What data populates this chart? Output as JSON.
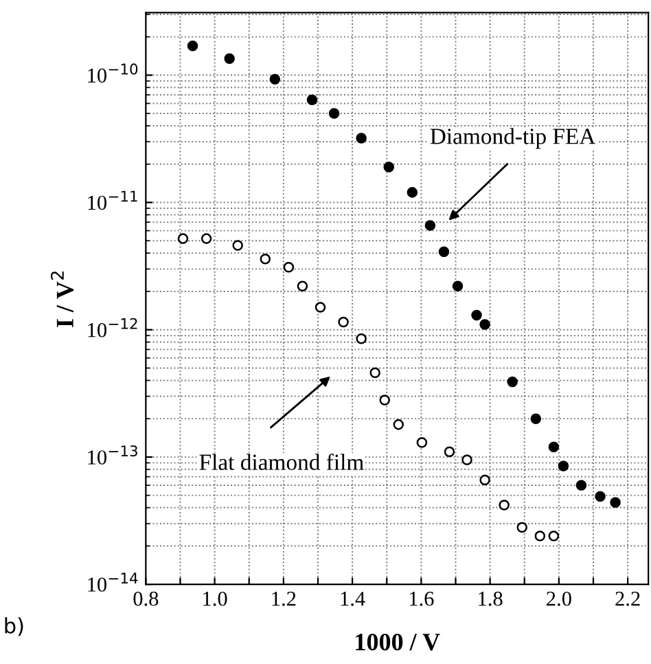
{
  "chart_data": {
    "type": "scatter",
    "xlabel": "1000 / V",
    "ylabel": "I / V$^{2}$",
    "log": "y",
    "grid": true,
    "xlim": [
      0.8,
      2.26
    ],
    "ylim": [
      1e-14,
      3.1e-10
    ],
    "xticks": [
      {
        "value": 0.8,
        "label": "0.8"
      },
      {
        "value": 0.9,
        "label": null
      },
      {
        "value": 1.0,
        "label": "1.0"
      },
      {
        "value": 1.1,
        "label": null
      },
      {
        "value": 1.2,
        "label": "1.2"
      },
      {
        "value": 1.3,
        "label": null
      },
      {
        "value": 1.4,
        "label": "1.4"
      },
      {
        "value": 1.5,
        "label": null
      },
      {
        "value": 1.6,
        "label": "1.6"
      },
      {
        "value": 1.7,
        "label": null
      },
      {
        "value": 1.8,
        "label": "1.8"
      },
      {
        "value": 1.9,
        "label": null
      },
      {
        "value": 2.0,
        "label": "2.0"
      },
      {
        "value": 2.1,
        "label": null
      },
      {
        "value": 2.2,
        "label": "2.2"
      }
    ],
    "yticks": [
      {
        "value": 1e-14,
        "label": "10$^{−14}$"
      },
      {
        "value": 1e-13,
        "label": "10$^{−13}$"
      },
      {
        "value": 1e-12,
        "label": "10$^{−12}$"
      },
      {
        "value": 1e-11,
        "label": "10$^{−11}$"
      },
      {
        "value": 1e-10,
        "label": "10$^{−10}$"
      }
    ],
    "series": [
      {
        "color": "#000000",
        "marker": "circle",
        "x": [
          0.936,
          1.043,
          1.175,
          1.283,
          1.347,
          1.426,
          1.506,
          1.574,
          1.626,
          1.666,
          1.706,
          1.761,
          1.785,
          1.865,
          1.933,
          1.985,
          2.013,
          2.065,
          2.12,
          2.164
        ],
        "values": [
          1.7e-10,
          1.35e-10,
          9.3e-11,
          6.4e-11,
          5e-11,
          3.2e-11,
          1.9e-11,
          1.2e-11,
          6.6e-12,
          4.1e-12,
          2.2e-12,
          1.3e-12,
          1.1e-12,
          3.9e-13,
          2e-13,
          1.2e-13,
          8.5e-14,
          6e-14,
          4.9e-14,
          4.4e-14
        ]
      },
      {
        "color": "#000000",
        "marker": "circle-open",
        "x": [
          0.908,
          0.976,
          1.067,
          1.147,
          1.215,
          1.255,
          1.307,
          1.374,
          1.426,
          1.466,
          1.494,
          1.534,
          1.602,
          1.682,
          1.733,
          1.785,
          1.841,
          1.893,
          1.945,
          1.985
        ],
        "values": [
          5.2e-12,
          5.2e-12,
          4.6e-12,
          3.6e-12,
          3.1e-12,
          2.2e-12,
          1.5e-12,
          1.15e-12,
          8.5e-13,
          4.6e-13,
          2.8e-13,
          1.8e-13,
          1.3e-13,
          1.1e-13,
          9.5e-14,
          6.6e-14,
          4.2e-14,
          2.8e-14,
          2.4e-14,
          2.4e-14
        ]
      }
    ],
    "annotations": [
      "Diamond-tip FEA",
      "Flat diamond film",
      "b)"
    ]
  }
}
